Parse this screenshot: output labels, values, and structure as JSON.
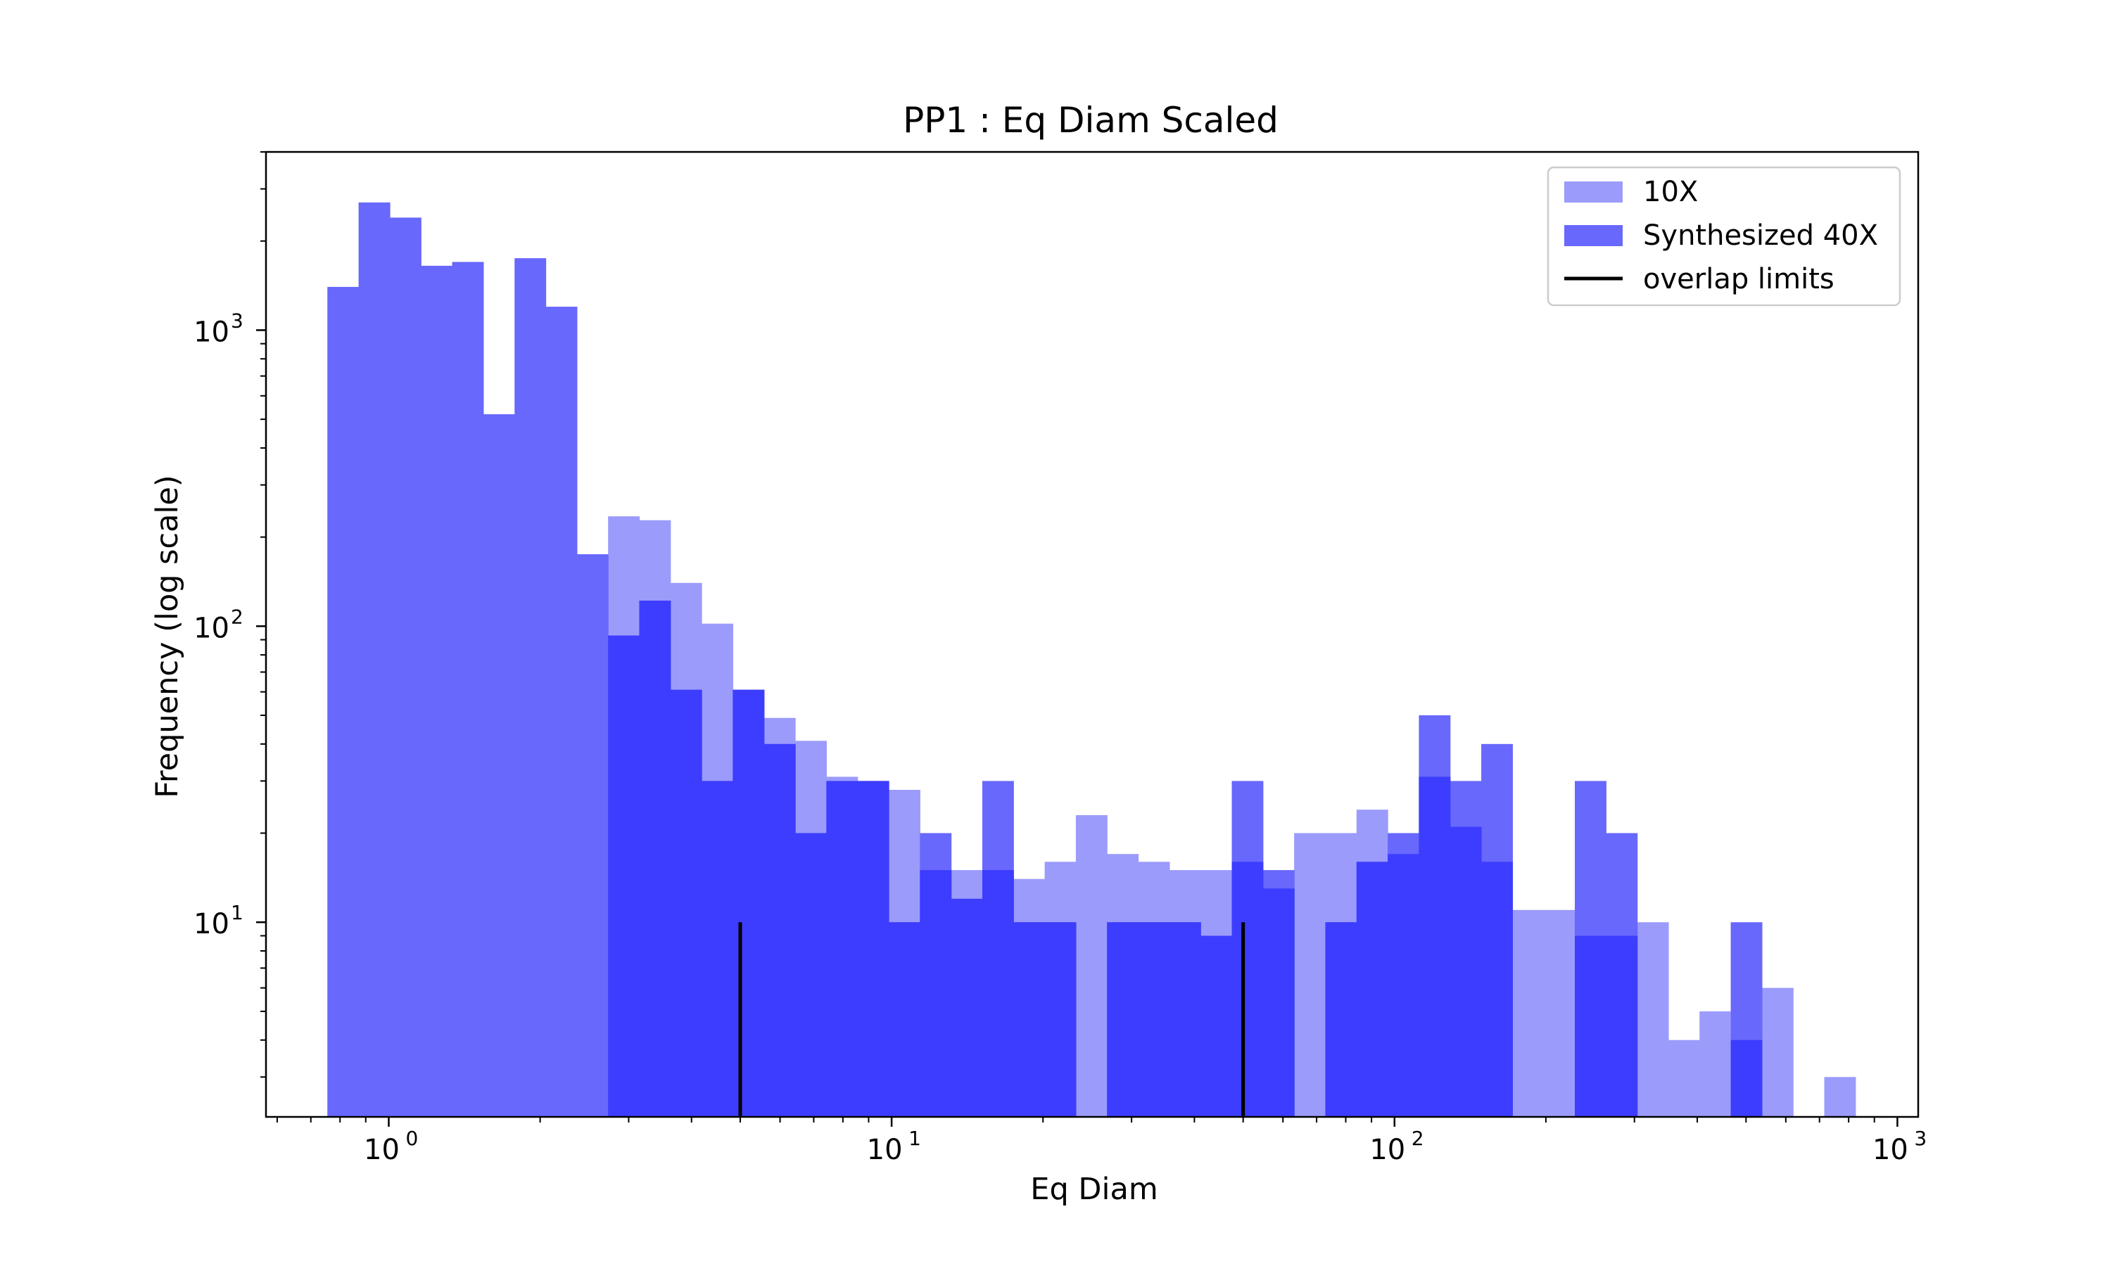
{
  "chart_data": {
    "type": "bar",
    "subtype": "overlaid histogram",
    "title": "PP1 : Eq Diam Scaled",
    "xlabel": "Eq Diam",
    "ylabel": "Frequency (log scale)",
    "xscale": "log",
    "yscale": "log",
    "xlim": [
      0.57,
      1100
    ],
    "ylim": [
      2.2,
      4000
    ],
    "grid": false,
    "legend_position": "upper right",
    "x_ticks": [
      {
        "base": "10",
        "exp": "0",
        "value": 1
      },
      {
        "base": "10",
        "exp": "1",
        "value": 10
      },
      {
        "base": "10",
        "exp": "2",
        "value": 100
      },
      {
        "base": "10",
        "exp": "3",
        "value": 1000
      }
    ],
    "y_ticks": [
      {
        "base": "10",
        "exp": "1",
        "value": 10
      },
      {
        "base": "10",
        "exp": "2",
        "value": 100
      },
      {
        "base": "10",
        "exp": "3",
        "value": 1000
      }
    ],
    "bin_edges": [
      0.755,
      0.871,
      1.005,
      1.159,
      1.337,
      1.542,
      1.779,
      2.052,
      2.367,
      2.73,
      3.149,
      3.632,
      4.189,
      4.832,
      5.574,
      6.43,
      7.417,
      8.555,
      9.868,
      11.383,
      13.13,
      15.146,
      17.47,
      20.152,
      23.245,
      26.813,
      30.928,
      35.675,
      41.151,
      47.467,
      54.753,
      63.157,
      72.851,
      84.033,
      96.931,
      111.81,
      128.97,
      148.77,
      171.6,
      197.94,
      228.32,
      263.37,
      303.79,
      350.42,
      404.2,
      466.24,
      537.8,
      620.35,
      715.56,
      825.39
    ],
    "series": [
      {
        "name": "10X",
        "color": "#9b9bfc",
        "values": [
          0,
          0,
          0,
          0,
          0,
          0,
          0,
          0,
          0,
          235,
          228,
          140,
          102,
          61,
          49,
          41,
          31,
          30,
          28,
          15,
          15,
          15,
          14,
          16,
          23,
          17,
          16,
          15,
          15,
          16,
          13,
          20,
          20,
          24,
          17,
          31,
          21,
          16,
          11,
          11,
          9,
          9,
          10,
          4,
          5,
          4,
          6,
          0,
          3
        ]
      },
      {
        "name": "Synthesized 40X",
        "color": "#6868fd",
        "values": [
          1400,
          2700,
          2400,
          1650,
          1700,
          520,
          1750,
          1200,
          175,
          93,
          122,
          61,
          30,
          61,
          40,
          20,
          30,
          30,
          10,
          20,
          12,
          30,
          10,
          10,
          0,
          10,
          10,
          10,
          9,
          30,
          15,
          0,
          10,
          16,
          20,
          50,
          30,
          40,
          0,
          0,
          30,
          20,
          0,
          0,
          0,
          10,
          0,
          0,
          0
        ]
      }
    ],
    "overlap_color": "#3d3dff",
    "overlap_limits": {
      "name": "overlap limits",
      "x": [
        5,
        50
      ],
      "y_top": 10,
      "color": "#000000"
    }
  }
}
